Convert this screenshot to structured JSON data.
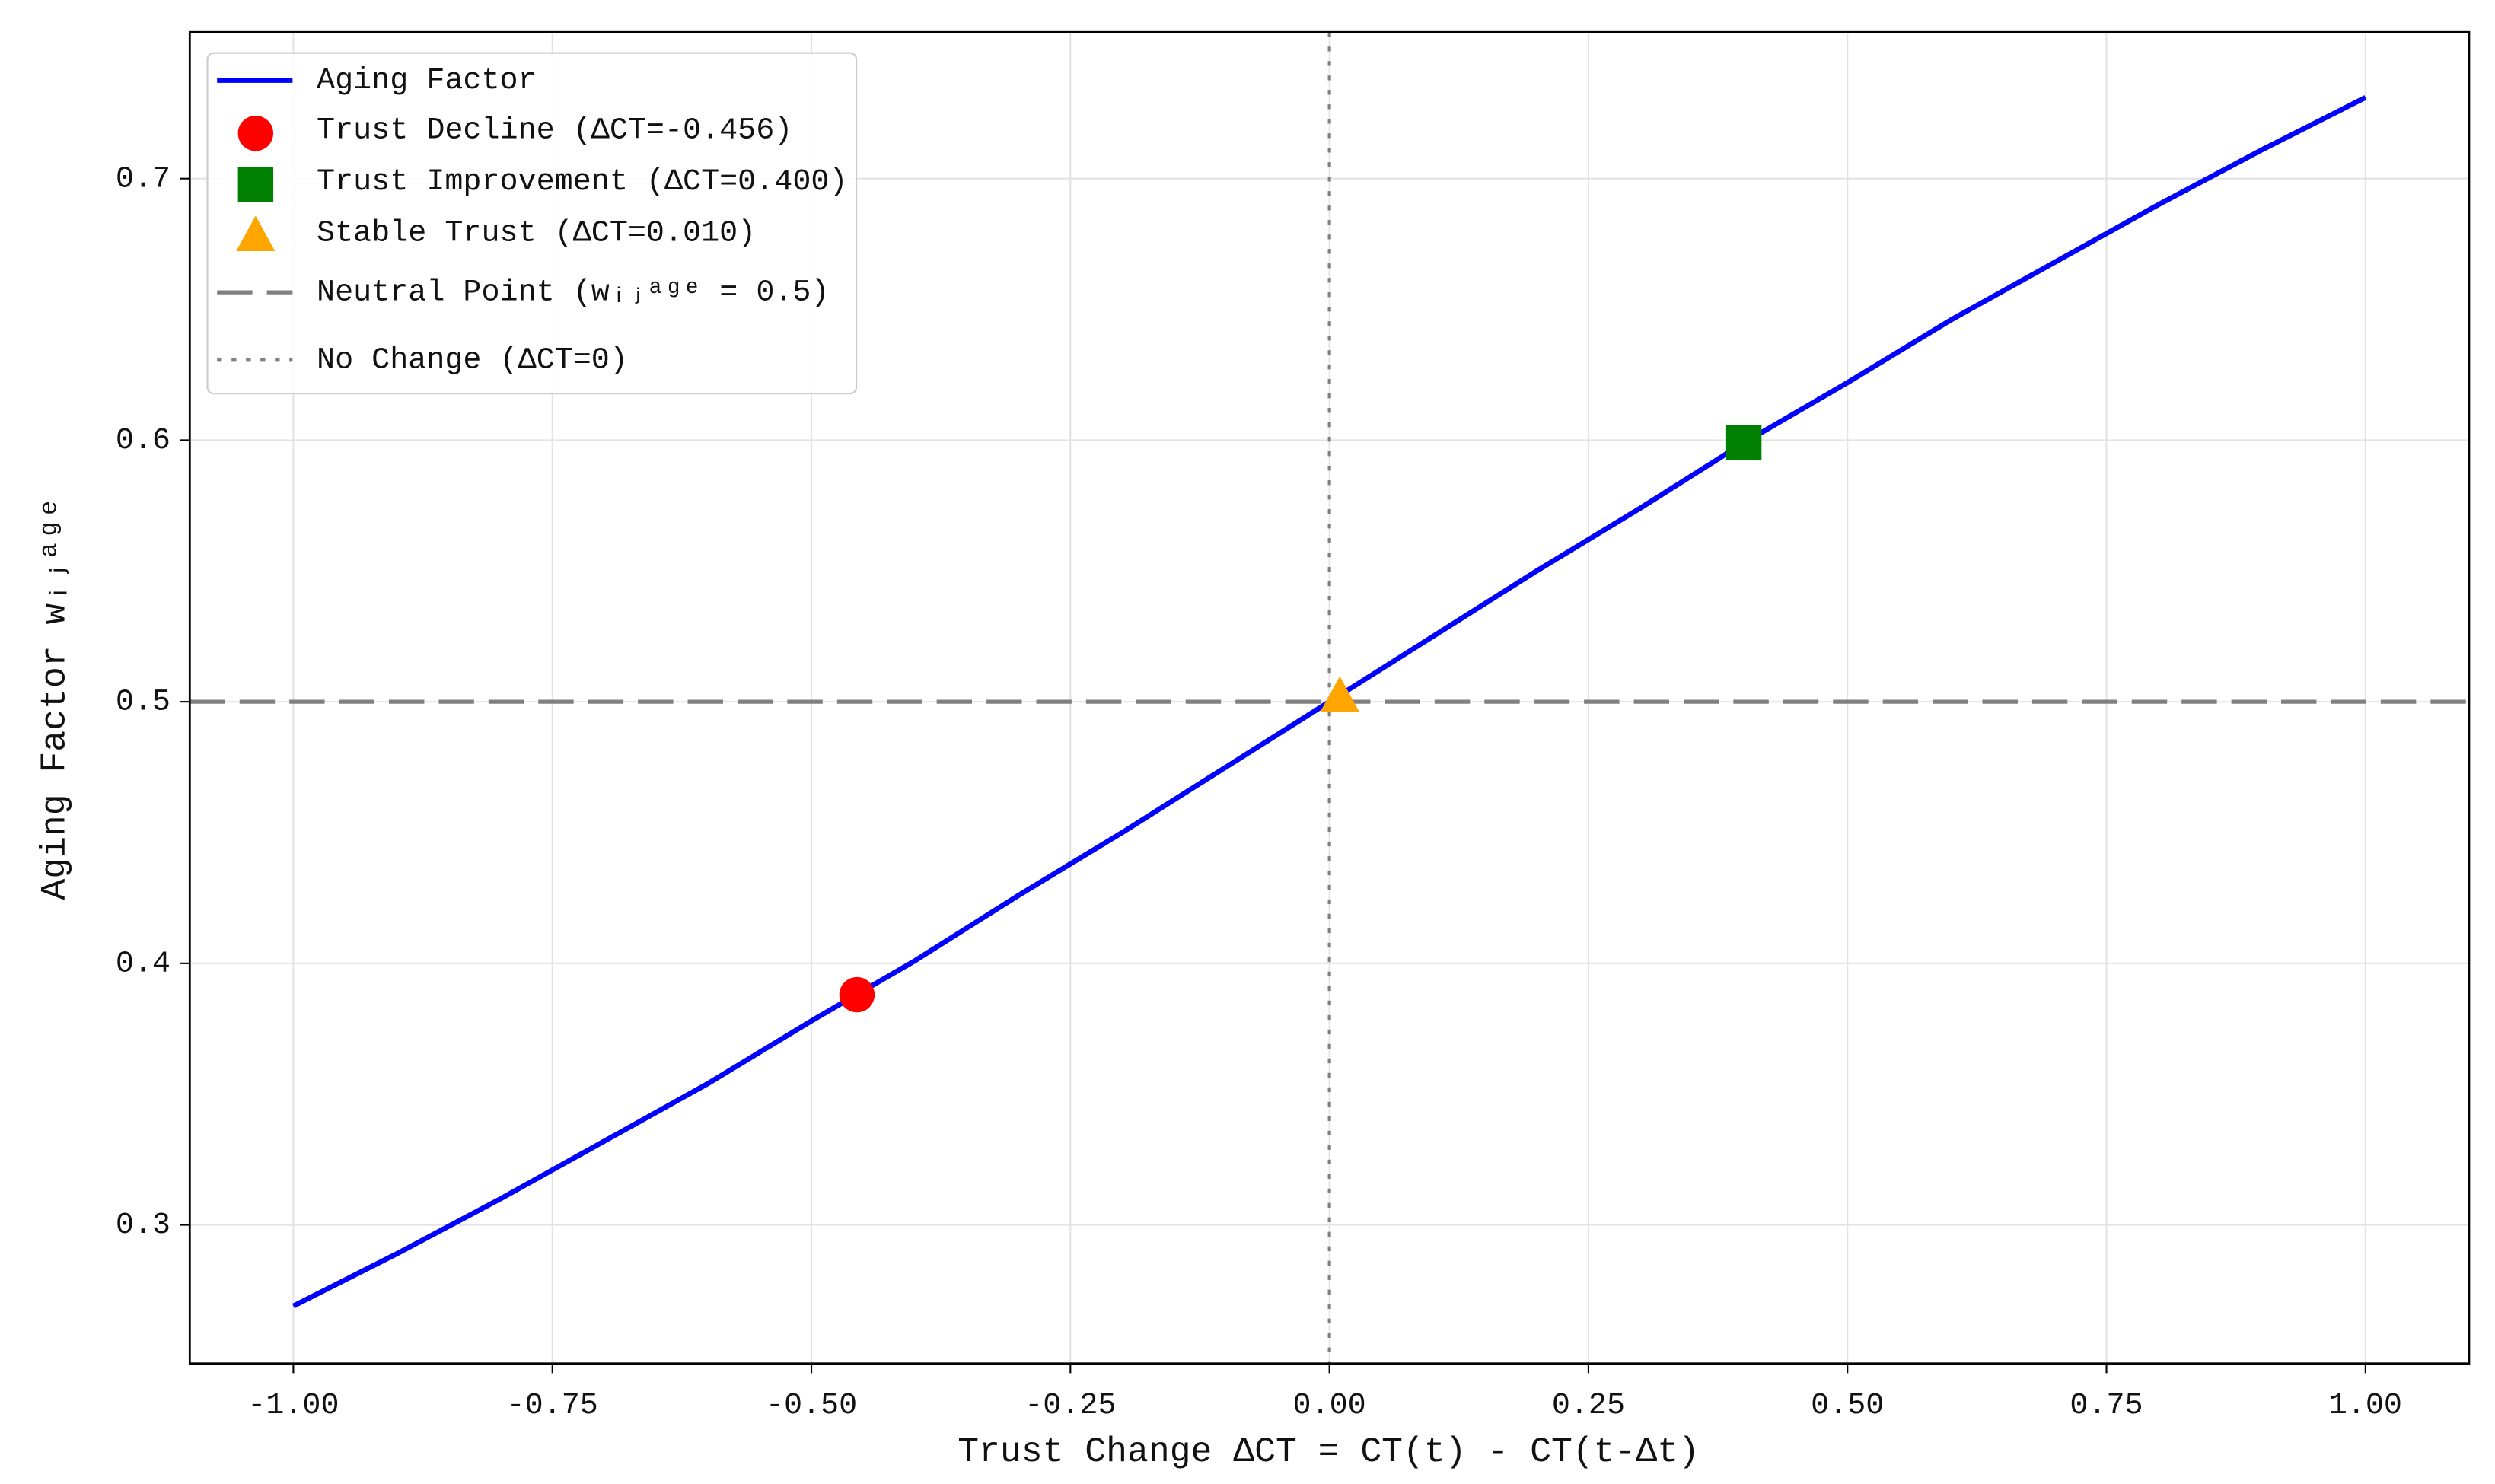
{
  "chart_data": {
    "type": "line",
    "x_label": "Trust Change ΔCT = CT(t) - CT(t-Δt)",
    "y_label": "Aging Factor wᵢⱼᵃᵍᵉ",
    "xlim": [
      -1.1,
      1.1
    ],
    "ylim": [
      0.247,
      0.756
    ],
    "xticks": [
      {
        "value": -1,
        "label": "-1.00"
      },
      {
        "value": -0.75,
        "label": "-0.75"
      },
      {
        "value": -0.5,
        "label": "-0.50"
      },
      {
        "value": -0.25,
        "label": "-0.25"
      },
      {
        "value": 0,
        "label": "0.00"
      },
      {
        "value": 0.25,
        "label": "0.25"
      },
      {
        "value": 0.5,
        "label": "0.50"
      },
      {
        "value": 0.75,
        "label": "0.75"
      },
      {
        "value": 1,
        "label": "1.00"
      }
    ],
    "yticks": [
      0.3,
      0.4,
      0.5,
      0.6,
      0.7
    ],
    "grid": true,
    "legend": "upper left",
    "series": [
      {
        "name": "Aging Factor",
        "color": "#0000ff",
        "kind": "line",
        "x": [
          -1.0,
          -0.9,
          -0.8,
          -0.7,
          -0.6,
          -0.5,
          -0.4,
          -0.3,
          -0.2,
          -0.1,
          0.0,
          0.1,
          0.2,
          0.3,
          0.4,
          0.5,
          0.6,
          0.7,
          0.8,
          0.9,
          1.0
        ],
        "values": [
          0.269,
          0.289,
          0.31,
          0.332,
          0.354,
          0.378,
          0.401,
          0.426,
          0.45,
          0.475,
          0.5,
          0.525,
          0.55,
          0.574,
          0.599,
          0.622,
          0.646,
          0.668,
          0.69,
          0.711,
          0.731
        ]
      },
      {
        "name": "Trust Decline (ΔCT=-0.456)",
        "color": "#ff0000",
        "kind": "circle",
        "x": [
          -0.456
        ],
        "values": [
          0.388
        ]
      },
      {
        "name": "Trust Improvement (ΔCT=0.400)",
        "color": "#008000",
        "kind": "square",
        "x": [
          0.4
        ],
        "values": [
          0.599
        ]
      },
      {
        "name": "Stable Trust (ΔCT=0.010)",
        "color": "#ffa500",
        "kind": "triangle",
        "x": [
          0.01
        ],
        "values": [
          0.502
        ]
      }
    ],
    "reference_lines": [
      {
        "name": "Neutral Point (wᵢⱼᵃᵍᵉ = 0.5)",
        "orientation": "horizontal",
        "value": 0.5,
        "color": "#808080",
        "style": "dashed"
      },
      {
        "name": "No Change (ΔCT=0)",
        "orientation": "vertical",
        "value": 0,
        "color": "#808080",
        "style": "dotted"
      }
    ]
  }
}
